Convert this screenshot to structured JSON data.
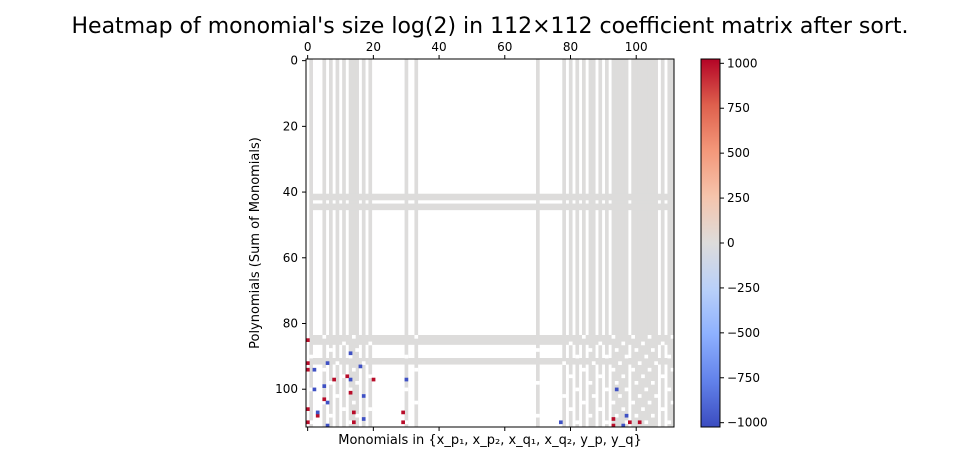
{
  "chart_data": {
    "type": "heatmap",
    "title": "Heatmap of monomial's size log(2) in 112×112 coefficient matrix after sort.",
    "xlabel": "Monomials in {x_p₁, x_p₂, x_q₁, x_q₂, y_p, y_q}",
    "ylabel": "Polynomials (Sum of Monomials)",
    "rows": 112,
    "cols": 112,
    "xlim": [
      -0.5,
      111.5
    ],
    "ylim": [
      -0.5,
      111.5
    ],
    "y_inverted": true,
    "x_ticks_position": "top",
    "x_ticks": [
      0,
      20,
      40,
      60,
      80,
      100
    ],
    "y_ticks": [
      0,
      20,
      40,
      60,
      80,
      100
    ],
    "colormap": "coolwarm",
    "zero_color": "#dddcdb",
    "empty_color": "#ffffff",
    "colorbar": {
      "vmin": -1024,
      "vmax": 1024,
      "ticks": [
        -1000,
        -750,
        -500,
        -250,
        0,
        250,
        500,
        750,
        1000
      ],
      "tick_labels": [
        "−1000",
        "−750",
        "−500",
        "−250",
        "0",
        "250",
        "500",
        "750",
        "1000"
      ],
      "stops": [
        "#3b4cc0",
        "#6282ea",
        "#8db0fe",
        "#b9d0f9",
        "#dddcdb",
        "#f5c4ac",
        "#f4987a",
        "#de604d",
        "#b40426"
      ]
    },
    "zero_columns": [
      1,
      5,
      7,
      9,
      11,
      13,
      14,
      15,
      17,
      19,
      30,
      33,
      70,
      78,
      80,
      82,
      84,
      86,
      87,
      89,
      91,
      93,
      94,
      95,
      96,
      97,
      99,
      100,
      101,
      102,
      103,
      104,
      105,
      106,
      108,
      110,
      111
    ],
    "zero_column_bands": [
      [
        41,
        42
      ],
      [
        44,
        45
      ],
      [
        84,
        86
      ],
      [
        91,
        92
      ]
    ],
    "sparse_row_start": 84,
    "positive_cells": [
      [
        85,
        0
      ],
      [
        92,
        0
      ],
      [
        94,
        0
      ],
      [
        97,
        8
      ],
      [
        106,
        0
      ],
      [
        110,
        0
      ],
      [
        103,
        5
      ],
      [
        108,
        3
      ],
      [
        96,
        12
      ],
      [
        101,
        13
      ],
      [
        107,
        14
      ],
      [
        110,
        14
      ],
      [
        97,
        20
      ],
      [
        107,
        29
      ],
      [
        110,
        29
      ],
      [
        109,
        93
      ],
      [
        111,
        93
      ],
      [
        110,
        98
      ],
      [
        110,
        101
      ]
    ],
    "negative_cells": [
      [
        94,
        2
      ],
      [
        100,
        2
      ],
      [
        107,
        3
      ],
      [
        99,
        5
      ],
      [
        92,
        6
      ],
      [
        104,
        6
      ],
      [
        111,
        6
      ],
      [
        89,
        13
      ],
      [
        97,
        13
      ],
      [
        93,
        16
      ],
      [
        102,
        17
      ],
      [
        109,
        17
      ],
      [
        97,
        30
      ],
      [
        110,
        77
      ],
      [
        100,
        94
      ],
      [
        108,
        97
      ],
      [
        111,
        96
      ]
    ]
  }
}
